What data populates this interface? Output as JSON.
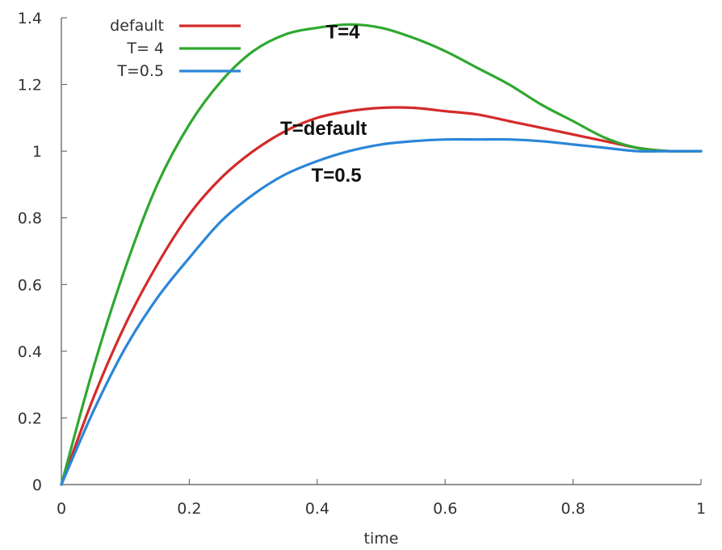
{
  "chart_data": {
    "type": "line",
    "title": "",
    "xlabel": "time",
    "ylabel": "",
    "xlim": [
      0,
      1
    ],
    "ylim": [
      0,
      1.4
    ],
    "x_ticks": [
      "0",
      "0.2",
      "0.4",
      "0.6",
      "0.8",
      "1"
    ],
    "y_ticks": [
      "0",
      "0.2",
      "0.4",
      "0.6",
      "0.8",
      "1",
      "1.2",
      "1.4"
    ],
    "grid": false,
    "legend_position": "top-left",
    "series": [
      {
        "name": "default",
        "color": "#d42a2a",
        "x": [
          0,
          0.05,
          0.1,
          0.15,
          0.2,
          0.25,
          0.3,
          0.35,
          0.4,
          0.45,
          0.5,
          0.55,
          0.6,
          0.65,
          0.7,
          0.75,
          0.8,
          0.85,
          0.9,
          0.95,
          1
        ],
        "y": [
          0,
          0.26,
          0.48,
          0.66,
          0.81,
          0.92,
          1.0,
          1.06,
          1.1,
          1.12,
          1.13,
          1.13,
          1.12,
          1.11,
          1.09,
          1.07,
          1.05,
          1.03,
          1.01,
          1.0,
          1.0
        ]
      },
      {
        "name": "T= 4",
        "color": "#2fa82f",
        "x": [
          0,
          0.05,
          0.1,
          0.15,
          0.2,
          0.25,
          0.3,
          0.35,
          0.4,
          0.45,
          0.5,
          0.55,
          0.6,
          0.65,
          0.7,
          0.75,
          0.8,
          0.85,
          0.9,
          0.95,
          1
        ],
        "y": [
          0,
          0.35,
          0.65,
          0.9,
          1.08,
          1.21,
          1.3,
          1.35,
          1.37,
          1.38,
          1.37,
          1.34,
          1.3,
          1.25,
          1.2,
          1.14,
          1.09,
          1.04,
          1.01,
          1.0,
          1.0
        ]
      },
      {
        "name": "T=0.5",
        "color": "#2b86d8",
        "x": [
          0,
          0.05,
          0.1,
          0.15,
          0.2,
          0.25,
          0.3,
          0.35,
          0.4,
          0.45,
          0.5,
          0.55,
          0.6,
          0.65,
          0.7,
          0.75,
          0.8,
          0.85,
          0.9,
          0.95,
          1
        ],
        "y": [
          0,
          0.22,
          0.41,
          0.56,
          0.68,
          0.79,
          0.87,
          0.93,
          0.97,
          1.0,
          1.02,
          1.03,
          1.035,
          1.035,
          1.035,
          1.03,
          1.02,
          1.01,
          1.0,
          1.0,
          1.0
        ]
      }
    ],
    "annotations": [
      {
        "text": "T=4",
        "x": 0.44,
        "y": 1.36
      },
      {
        "text": "T=default",
        "x": 0.41,
        "y": 1.07
      },
      {
        "text": "T=0.5",
        "x": 0.43,
        "y": 0.93
      }
    ]
  }
}
